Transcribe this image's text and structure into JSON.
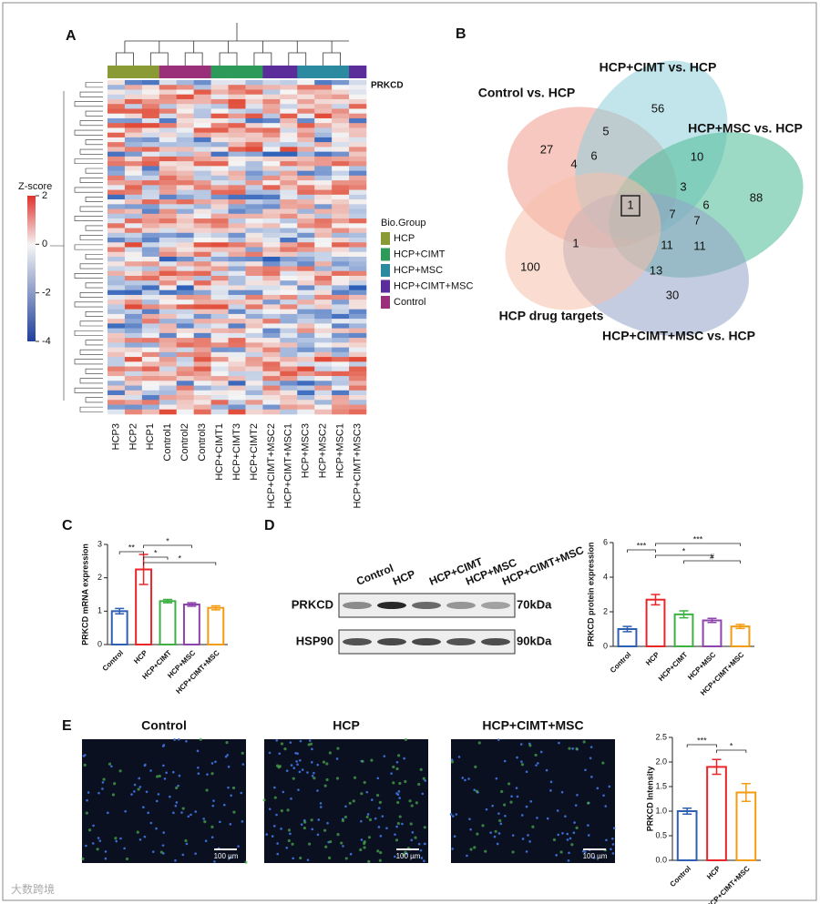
{
  "figure": {
    "a": {
      "label": "A",
      "marker": "PRKCD",
      "columns": [
        "HCP3",
        "HCP2",
        "HCP1",
        "Control1",
        "Control2",
        "Control3",
        "HCP+CIMT1",
        "HCP+CIMT3",
        "HCP+CIMT2",
        "HCP+CIMT+MSC2",
        "HCP+CIMT+MSC1",
        "HCP+MSC3",
        "HCP+MSC2",
        "HCP+MSC1",
        "HCP+CIMT+MSC3"
      ],
      "column_groups": [
        "HCP",
        "HCP",
        "HCP",
        "Control",
        "Control",
        "Control",
        "HCP+CIMT",
        "HCP+CIMT",
        "HCP+CIMT",
        "HCP+CIMT+MSC",
        "HCP+CIMT+MSC",
        "HCP+MSC",
        "HCP+MSC",
        "HCP+MSC",
        "HCP+CIMT+MSC"
      ],
      "colorbar": {
        "title": "Z-score",
        "lim": [
          -4,
          2
        ],
        "ticks": [
          2,
          0,
          -2,
          -4
        ]
      },
      "legend": {
        "title": "Bio.Group",
        "groups": [
          {
            "name": "HCP",
            "color": "#8a9b35"
          },
          {
            "name": "HCP+CIMT",
            "color": "#2e9a5a"
          },
          {
            "name": "HCP+MSC",
            "color": "#2b8aa0"
          },
          {
            "name": "HCP+CIMT+MSC",
            "color": "#5b2d9a"
          },
          {
            "name": "Control",
            "color": "#9a2f7a"
          }
        ]
      }
    },
    "b": {
      "label": "B",
      "sets": [
        {
          "name": "Control vs. HCP",
          "color": "#f09a8c"
        },
        {
          "name": "HCP+CIMT vs. HCP",
          "color": "#8fd0dc"
        },
        {
          "name": "HCP+MSC vs. HCP",
          "color": "#4dbb98"
        },
        {
          "name": "HCP+CIMT+MSC vs. HCP",
          "color": "#93a3c9"
        },
        {
          "name": "HCP drug targets",
          "color": "#f6bfaa"
        }
      ],
      "counts": [
        27,
        5,
        56,
        10,
        88,
        4,
        6,
        3,
        6,
        1,
        7,
        7,
        1,
        11,
        11,
        13,
        100,
        30
      ]
    },
    "d": {
      "label": "D",
      "lanes": [
        "Control",
        "HCP",
        "HCP+CIMT",
        "HCP+MSC",
        "HCP+CIMT+MSC"
      ],
      "bands": [
        {
          "name": "PRKCD",
          "size": "70kDa"
        },
        {
          "name": "HSP90",
          "size": "90kDa"
        }
      ]
    },
    "e": {
      "label": "E",
      "images": [
        "Control",
        "HCP",
        "HCP+CIMT+MSC"
      ],
      "scale": "100 µm"
    },
    "c": {
      "label": "C"
    },
    "watermark": "大数跨境"
  },
  "chart_data": [
    {
      "type": "bar",
      "ylabel": "PRKCD mRNA expression",
      "categories": [
        "Control",
        "HCP",
        "HCP+CIMT",
        "HCP+MSC",
        "HCP+CIMT+MSC"
      ],
      "values": [
        1.0,
        2.25,
        1.3,
        1.2,
        1.1
      ],
      "errors": [
        0.08,
        0.45,
        0.05,
        0.05,
        0.06
      ],
      "colors": [
        "#2f5fb3",
        "#e8262a",
        "#3cb043",
        "#8e44ad",
        "#f39c12"
      ],
      "ylim": [
        0,
        3
      ],
      "yticks": [
        0,
        1,
        2,
        3
      ],
      "significance": [
        {
          "from": 0,
          "to": 1,
          "label": "**"
        },
        {
          "from": 1,
          "to": 2,
          "label": "*"
        },
        {
          "from": 1,
          "to": 3,
          "label": "*"
        },
        {
          "from": 1,
          "to": 4,
          "label": "*"
        }
      ]
    },
    {
      "type": "bar",
      "ylabel": "PRKCD protein expression",
      "categories": [
        "Control",
        "HCP",
        "HCP+CIMT",
        "HCP+MSC",
        "HCP+CIMT+MSC"
      ],
      "values": [
        1.0,
        2.7,
        1.85,
        1.5,
        1.15
      ],
      "errors": [
        0.15,
        0.3,
        0.2,
        0.12,
        0.12
      ],
      "colors": [
        "#2f5fb3",
        "#e8262a",
        "#3cb043",
        "#8e44ad",
        "#f39c12"
      ],
      "ylim": [
        0,
        6
      ],
      "yticks": [
        0,
        2,
        4,
        6
      ],
      "significance": [
        {
          "from": 0,
          "to": 1,
          "label": "***"
        },
        {
          "from": 1,
          "to": 3,
          "label": "*"
        },
        {
          "from": 1,
          "to": 4,
          "label": "***"
        },
        {
          "from": 2,
          "to": 4,
          "label": "#"
        }
      ]
    },
    {
      "type": "bar",
      "ylabel": "PRKCD Intensity",
      "categories": [
        "Control",
        "HCP",
        "HCP+CIMT+MSC"
      ],
      "values": [
        1.0,
        1.9,
        1.38
      ],
      "errors": [
        0.06,
        0.15,
        0.18
      ],
      "colors": [
        "#2f5fb3",
        "#e8262a",
        "#f39c12"
      ],
      "ylim": [
        0,
        2.5
      ],
      "yticks": [
        {
          "value": 0,
          "label": "0.0"
        },
        {
          "value": 0.5,
          "label": "0.5"
        },
        {
          "value": 1,
          "label": "1.0"
        },
        {
          "value": 1.5,
          "label": "1.5"
        },
        {
          "value": 2,
          "label": "2.0"
        },
        {
          "value": 2.5,
          "label": "2.5"
        }
      ],
      "significance": [
        {
          "from": 0,
          "to": 1,
          "label": "***"
        },
        {
          "from": 1,
          "to": 2,
          "label": "*"
        }
      ]
    }
  ]
}
